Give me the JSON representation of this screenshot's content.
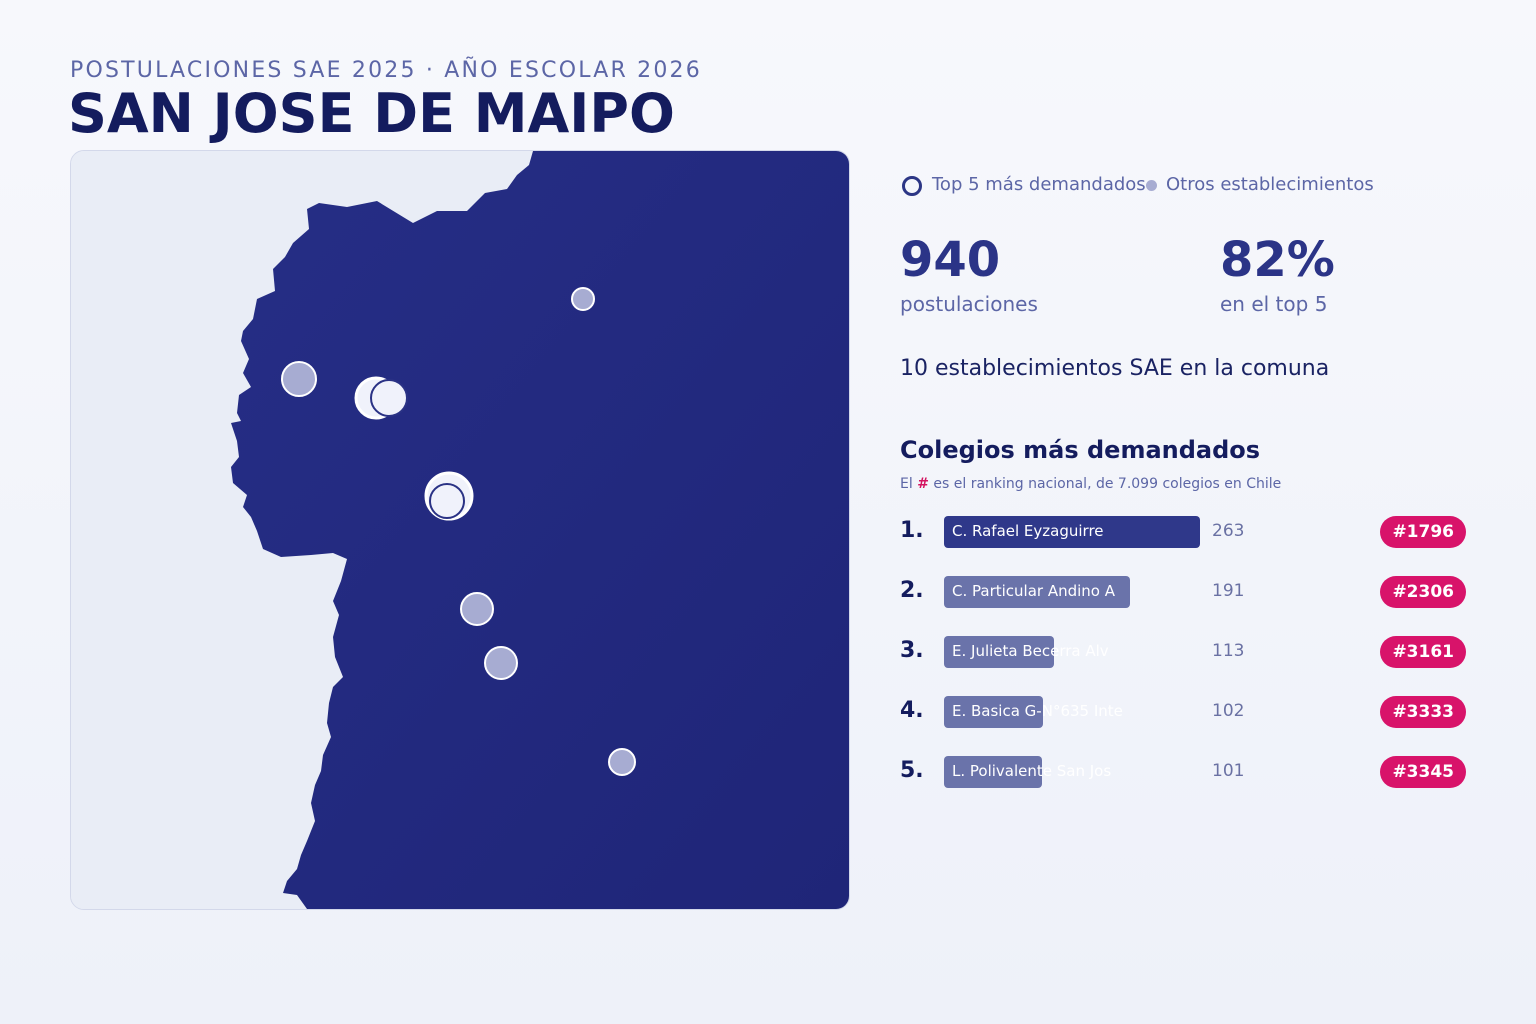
{
  "header": {
    "subtitle": "POSTULACIONES SAE 2025 · AÑO ESCOLAR 2026",
    "title": "SAN JOSE DE MAIPO"
  },
  "legend": {
    "top5_label": "Top 5 más demandados",
    "others_label": "Otros establecimientos"
  },
  "stats": {
    "applications_value": "940",
    "applications_label": "postulaciones",
    "top5_share_value": "82%",
    "top5_share_label": "en el top 5"
  },
  "establishments_line": "10 establecimientos SAE en la comuna",
  "ranking": {
    "title": "Colegios más demandados",
    "note_prefix": "El",
    "note_hash": "#",
    "note_suffix": "es el ranking nacional, de 7.099 colegios en Chile",
    "max_value": 263,
    "schools": [
      {
        "rank": "1.",
        "name": "C. Rafael Eyzaguirre",
        "value": 263,
        "value_label": "263",
        "national_rank": "#1796"
      },
      {
        "rank": "2.",
        "name": "C. Particular Andino A",
        "value": 191,
        "value_label": "191",
        "national_rank": "#2306"
      },
      {
        "rank": "3.",
        "name": "E. Julieta Becerra Alv",
        "value": 113,
        "value_label": "113",
        "national_rank": "#3161"
      },
      {
        "rank": "4.",
        "name": "E. Basica G-N°635 Inte",
        "value": 102,
        "value_label": "102",
        "national_rank": "#3333"
      },
      {
        "rank": "5.",
        "name": "L. Polivalente San Jos",
        "value": 101,
        "value_label": "101",
        "national_rank": "#3345"
      }
    ]
  },
  "colors": {
    "commune_fill": "#232a82",
    "outside_fill": "#e9edf6",
    "top5_marker": "#f0f2fb",
    "other_marker": "#a7acd2",
    "badge": "#d8136a",
    "bar_top": "#2f388a",
    "bar_rest": "#6a73aa"
  }
}
